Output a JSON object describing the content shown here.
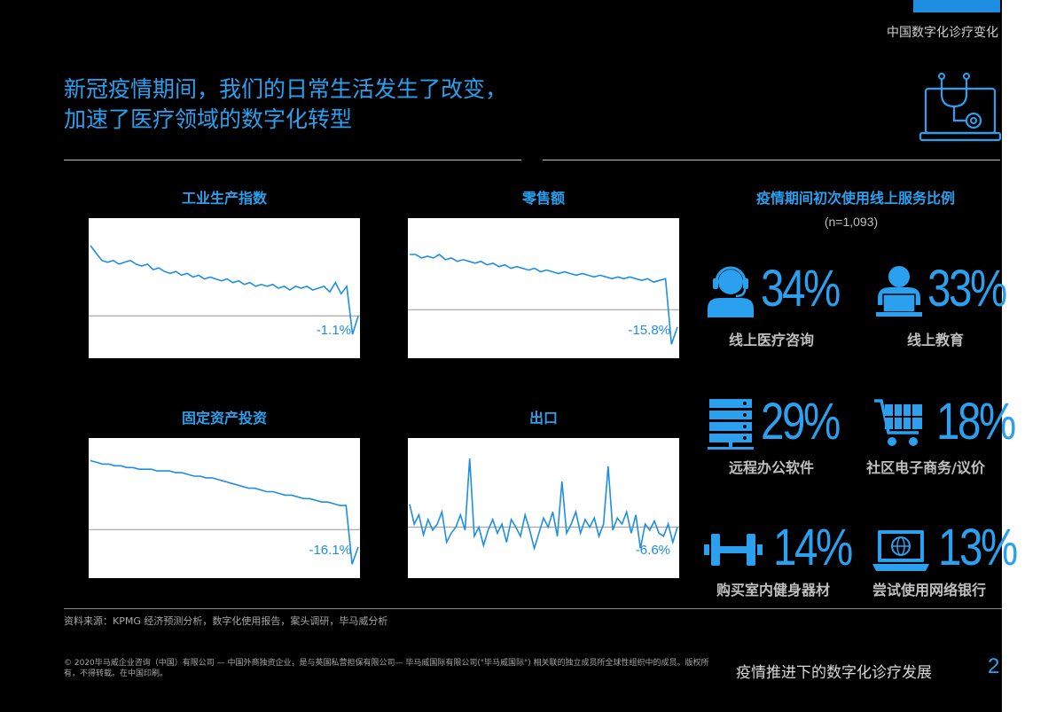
{
  "header": {
    "section_label": "中国数字化诊疗变化",
    "title_line1": "新冠疫情期间，我们的日常生活发生了改变，",
    "title_line2": "加速了医疗领域的数字化转型",
    "icon": "laptop-stethoscope-icon"
  },
  "chart_data": [
    {
      "type": "line",
      "title": "工业生产指数",
      "end_label": "-1.1%",
      "values": [
        88,
        84,
        80,
        79,
        80,
        78,
        79,
        80,
        78,
        77,
        78,
        75,
        76,
        74,
        73,
        74,
        72,
        73,
        71,
        72,
        70,
        71,
        70,
        69,
        70,
        68,
        69,
        67,
        68,
        66,
        67,
        66,
        67,
        65,
        66,
        64,
        66,
        65,
        66,
        64,
        65,
        66,
        63,
        68,
        62,
        66,
        40,
        50
      ],
      "baseline": 50,
      "ylim": [
        30,
        100
      ],
      "grid": false
    },
    {
      "type": "line",
      "title": "零售额",
      "end_label": "-15.8%",
      "values": [
        82,
        82,
        80,
        81,
        80,
        82,
        79,
        80,
        78,
        79,
        78,
        77,
        78,
        76,
        77,
        75,
        76,
        74,
        75,
        74,
        73,
        74,
        72,
        73,
        72,
        71,
        72,
        71,
        70,
        71,
        70,
        69,
        70,
        69,
        68,
        69,
        68,
        69,
        68,
        67,
        68,
        66,
        67,
        68,
        30,
        40
      ],
      "baseline": 50,
      "ylim": [
        25,
        100
      ],
      "grid": false
    },
    {
      "type": "line",
      "title": "固定资产投资",
      "end_label": "-16.1%",
      "values": [
        90,
        89,
        88,
        88,
        87,
        87,
        86,
        86,
        85,
        85,
        85,
        84,
        84,
        84,
        83,
        83,
        82,
        81,
        81,
        80,
        80,
        79,
        78,
        77,
        76,
        75,
        74,
        74,
        73,
        72,
        72,
        71,
        70,
        70,
        69,
        68,
        68,
        67,
        66,
        66,
        65,
        64,
        64,
        30,
        40
      ],
      "baseline": 50,
      "ylim": [
        25,
        100
      ],
      "grid": false
    },
    {
      "type": "line",
      "title": "出口",
      "end_label": "-6.6%",
      "values": [
        65,
        52,
        58,
        45,
        55,
        48,
        52,
        60,
        40,
        46,
        50,
        58,
        48,
        95,
        44,
        50,
        38,
        48,
        55,
        46,
        52,
        40,
        55,
        50,
        44,
        58,
        48,
        36,
        46,
        56,
        50,
        60,
        44,
        80,
        46,
        52,
        60,
        46,
        55,
        50,
        56,
        44,
        52,
        90,
        48,
        56,
        52,
        60,
        46,
        58,
        36,
        52,
        48,
        54,
        46,
        44,
        52,
        40,
        50
      ],
      "baseline": 50,
      "ylim": [
        20,
        105
      ],
      "grid": false
    }
  ],
  "stats_panel": {
    "title": "疫情期间初次使用线上服务比例",
    "subtitle": "(n=1,093)",
    "items": [
      {
        "pct": "34%",
        "label": "线上医疗咨询",
        "icon": "headset-person-icon"
      },
      {
        "pct": "33%",
        "label": "线上教育",
        "icon": "person-laptop-icon"
      },
      {
        "pct": "29%",
        "label": "远程办公软件",
        "icon": "server-icon"
      },
      {
        "pct": "18%",
        "label": "社区电子商务/议价",
        "icon": "shopping-cart-icon"
      },
      {
        "pct": "14%",
        "label": "购买室内健身器材",
        "icon": "dumbbell-icon"
      },
      {
        "pct": "13%",
        "label": "尝试使用网络银行",
        "icon": "laptop-globe-icon"
      }
    ]
  },
  "footer": {
    "source": "资料来源：KPMG 经济预测分析，数字化使用报告，案头调研，毕马威分析",
    "copyright": "© 2020毕马威企业咨询（中国）有限公司 — 中国外商独资企业，是与英国私营担保有限公司— 毕马威国际有限公司(\"毕马威国际\") 相关联的独立成员所全球性组织中的成员。版权所有，不得转载。在中国印刷。",
    "title": "疫情推进下的数字化诊疗发展",
    "page_number": "2"
  },
  "colors": {
    "accent": "#2aa0ee",
    "line": "#1e8fe0",
    "background": "#000000",
    "baseline": "#a6a6a6"
  }
}
